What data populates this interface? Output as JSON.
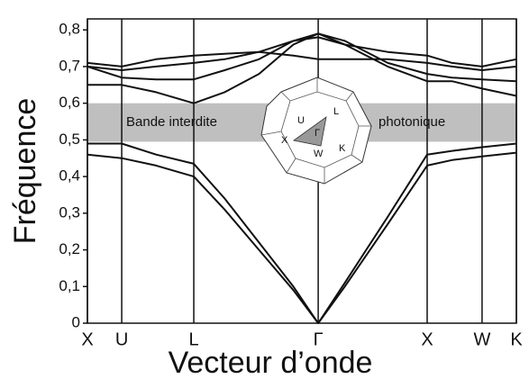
{
  "chart_data": {
    "type": "line",
    "x_label": "Vecteur d’onde",
    "y_label": "Fréquence",
    "xlim": [
      0,
      1
    ],
    "ylim": [
      0,
      0.83
    ],
    "xticks": [
      {
        "value": 0,
        "label": "X"
      },
      {
        "value": 0.08,
        "label": "U"
      },
      {
        "value": 0.248,
        "label": "L"
      },
      {
        "value": 0.538,
        "label": "Γ"
      },
      {
        "value": 0.792,
        "label": "X"
      },
      {
        "value": 0.92,
        "label": "W"
      },
      {
        "value": 1,
        "label": "K"
      }
    ],
    "yticks": [
      0,
      {
        "value": 0.1,
        "label": "0,1"
      },
      {
        "value": 0.2,
        "label": "0,2"
      },
      {
        "value": 0.3,
        "label": "0,3"
      },
      {
        "value": 0.4,
        "label": "0,4"
      },
      {
        "value": 0.5,
        "label": "0,5"
      },
      {
        "value": 0.6,
        "label": "0,6"
      },
      {
        "value": 0.7,
        "label": "0,7"
      },
      {
        "value": 0.8,
        "label": "0,8"
      }
    ],
    "grid": "x",
    "band_gap": {
      "range": [
        0.495,
        0.6
      ],
      "color": "#a9a9a9",
      "labels": [
        "Bande interdite",
        "photonique"
      ]
    },
    "inset_labels": [
      "U",
      "L",
      "X",
      "Γ",
      "W",
      "K"
    ],
    "x": [
      0,
      0.08,
      0.16,
      0.248,
      0.32,
      0.4,
      0.48,
      0.538,
      0.6,
      0.7,
      0.792,
      0.85,
      0.92,
      1
    ],
    "series": [
      {
        "color": "#111",
        "values": [
          0.46,
          0.45,
          0.43,
          0.4,
          0.31,
          0.2,
          0.09,
          0,
          0.1,
          0.27,
          0.43,
          0.445,
          0.455,
          0.465
        ]
      },
      {
        "color": "#111",
        "values": [
          0.49,
          0.49,
          0.46,
          0.435,
          0.34,
          0.22,
          0.1,
          0,
          0.11,
          0.29,
          0.46,
          0.47,
          0.48,
          0.49
        ]
      },
      {
        "color": "#111",
        "values": [
          0.65,
          0.65,
          0.63,
          0.6,
          0.63,
          0.68,
          0.76,
          0.79,
          0.76,
          0.7,
          0.66,
          0.66,
          0.64,
          0.62
        ]
      },
      {
        "color": "#111",
        "values": [
          0.7,
          0.67,
          0.665,
          0.665,
          0.69,
          0.72,
          0.77,
          0.79,
          0.77,
          0.71,
          0.68,
          0.67,
          0.665,
          0.66
        ]
      },
      {
        "color": "#111",
        "values": [
          0.71,
          0.7,
          0.72,
          0.73,
          0.735,
          0.74,
          0.73,
          0.72,
          0.72,
          0.72,
          0.71,
          0.7,
          0.69,
          0.7
        ]
      },
      {
        "color": "#111",
        "values": [
          0.7,
          0.69,
          0.7,
          0.71,
          0.72,
          0.74,
          0.77,
          0.78,
          0.76,
          0.74,
          0.73,
          0.71,
          0.7,
          0.72
        ]
      }
    ]
  }
}
